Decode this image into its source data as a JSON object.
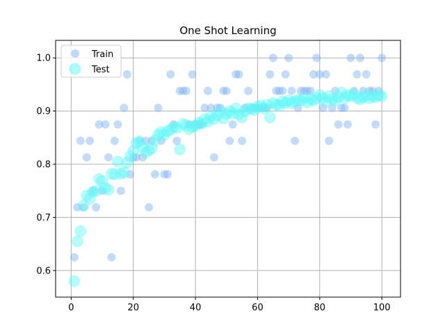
{
  "chart_data": {
    "type": "scatter",
    "title": "One Shot Learning",
    "xlabel": "",
    "ylabel": "",
    "xlim": [
      -5,
      106
    ],
    "ylim": [
      0.55,
      1.033
    ],
    "xticks": [
      0,
      20,
      40,
      60,
      80,
      100
    ],
    "yticks": [
      0.6,
      0.7,
      0.8,
      0.9,
      1.0
    ],
    "xtick_labels": [
      "0",
      "20",
      "40",
      "60",
      "80",
      "100"
    ],
    "ytick_labels": [
      "0.6",
      "0.7",
      "0.8",
      "0.9",
      "1.0"
    ],
    "grid": true,
    "legend_position": "top-left",
    "series": [
      {
        "name": "Train",
        "color": "#7fb2f0",
        "x": [
          1,
          2,
          3,
          4,
          5,
          6,
          7,
          8,
          9,
          10,
          11,
          12,
          13,
          14,
          15,
          16,
          17,
          18,
          19,
          20,
          21,
          22,
          23,
          24,
          25,
          26,
          27,
          28,
          29,
          30,
          31,
          32,
          33,
          34,
          35,
          36,
          37,
          38,
          39,
          40,
          41,
          42,
          43,
          44,
          45,
          46,
          47,
          48,
          49,
          50,
          51,
          52,
          53,
          54,
          55,
          56,
          57,
          58,
          59,
          60,
          61,
          62,
          63,
          64,
          65,
          66,
          67,
          68,
          69,
          70,
          71,
          72,
          73,
          74,
          75,
          76,
          77,
          78,
          79,
          80,
          81,
          82,
          83,
          84,
          85,
          86,
          87,
          88,
          89,
          90,
          91,
          92,
          93,
          94,
          95,
          96,
          97,
          98,
          99,
          100
        ],
        "y": [
          0.625,
          0.719,
          0.844,
          0.719,
          0.813,
          0.844,
          0.75,
          0.719,
          0.875,
          0.75,
          0.875,
          0.813,
          0.625,
          0.844,
          0.875,
          0.75,
          0.906,
          0.969,
          0.781,
          0.813,
          0.813,
          0.844,
          0.813,
          0.844,
          0.719,
          0.844,
          0.781,
          0.906,
          0.844,
          0.781,
          0.781,
          0.969,
          0.875,
          0.844,
          0.938,
          0.938,
          0.938,
          0.875,
          0.969,
          0.875,
          0.875,
          0.875,
          0.906,
          0.938,
          0.906,
          0.813,
          0.906,
          0.906,
          0.938,
          0.938,
          0.844,
          0.875,
          0.969,
          0.969,
          0.844,
          0.906,
          0.938,
          0.906,
          0.906,
          0.906,
          0.906,
          0.906,
          0.906,
          0.969,
          1.0,
          0.938,
          0.938,
          0.938,
          0.969,
          1.0,
          0.938,
          0.844,
          0.906,
          0.938,
          0.938,
          0.938,
          0.938,
          0.969,
          1.0,
          0.969,
          0.906,
          0.969,
          0.844,
          0.906,
          0.938,
          0.875,
          0.906,
          0.906,
          0.875,
          1.0,
          0.938,
          0.969,
          1.0,
          0.938,
          0.969,
          0.938,
          0.938,
          0.875,
          0.938,
          1.0
        ]
      },
      {
        "name": "Test",
        "color": "#5ff7f7",
        "x": [
          1,
          2,
          3,
          4,
          5,
          6,
          7,
          8,
          9,
          10,
          11,
          12,
          13,
          14,
          15,
          16,
          17,
          18,
          19,
          20,
          21,
          22,
          23,
          24,
          25,
          26,
          27,
          28,
          29,
          30,
          31,
          32,
          33,
          34,
          35,
          36,
          37,
          38,
          39,
          40,
          41,
          42,
          43,
          44,
          45,
          46,
          47,
          48,
          49,
          50,
          51,
          52,
          53,
          54,
          55,
          56,
          57,
          58,
          59,
          60,
          61,
          62,
          63,
          64,
          65,
          66,
          67,
          68,
          69,
          70,
          71,
          72,
          73,
          74,
          75,
          76,
          77,
          78,
          79,
          80,
          81,
          82,
          83,
          84,
          85,
          86,
          87,
          88,
          89,
          90,
          91,
          92,
          93,
          94,
          95,
          96,
          97,
          98,
          99,
          100
        ],
        "y": [
          0.58,
          0.655,
          0.674,
          0.722,
          0.741,
          0.735,
          0.748,
          0.75,
          0.772,
          0.768,
          0.755,
          0.752,
          0.782,
          0.781,
          0.805,
          0.782,
          0.785,
          0.803,
          0.815,
          0.825,
          0.84,
          0.843,
          0.832,
          0.822,
          0.826,
          0.83,
          0.845,
          0.856,
          0.86,
          0.855,
          0.862,
          0.865,
          0.87,
          0.868,
          0.828,
          0.876,
          0.873,
          0.866,
          0.87,
          0.872,
          0.878,
          0.876,
          0.885,
          0.88,
          0.89,
          0.885,
          0.892,
          0.9,
          0.886,
          0.895,
          0.9,
          0.895,
          0.905,
          0.894,
          0.888,
          0.9,
          0.905,
          0.904,
          0.902,
          0.908,
          0.91,
          0.905,
          0.912,
          0.888,
          0.915,
          0.912,
          0.91,
          0.918,
          0.915,
          0.92,
          0.915,
          0.918,
          0.921,
          0.92,
          0.925,
          0.916,
          0.922,
          0.92,
          0.924,
          0.93,
          0.925,
          0.918,
          0.928,
          0.922,
          0.92,
          0.926,
          0.935,
          0.924,
          0.93,
          0.928,
          0.932,
          0.925,
          0.922,
          0.926,
          0.93,
          0.924,
          0.928,
          0.926,
          0.93,
          0.928
        ]
      }
    ]
  }
}
